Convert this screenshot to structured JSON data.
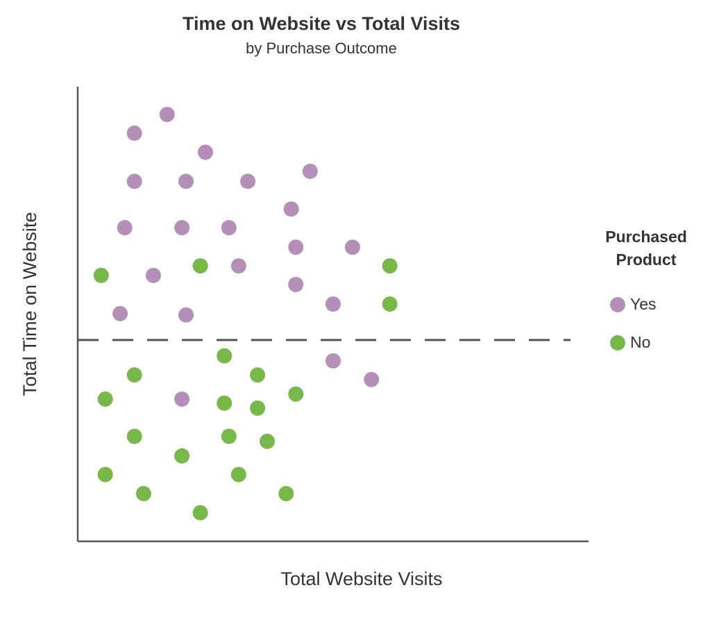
{
  "chart_data": {
    "type": "scatter",
    "title": "Time on Website vs Total Visits",
    "subtitle": "by Purchase Outcome",
    "x_label": "Total Website Visits",
    "y_label": "Total Time on Website",
    "legend_title": "Purchased Product",
    "legend": "right",
    "xlim": [
      0,
      100
    ],
    "ylim": [
      0,
      100
    ],
    "reference_line": 44.3,
    "series": [
      {
        "name": "Yes",
        "color": "#b48fb8",
        "x": [
          17.5,
          11.1,
          25,
          11.1,
          21.2,
          33.3,
          45.5,
          41.8,
          9.2,
          20.4,
          29.6,
          42.7,
          53.8,
          14.8,
          31.5,
          42.7,
          50,
          8.3,
          21.2,
          50,
          57.5,
          20.4
        ],
        "values": [
          93.9,
          89.8,
          85.6,
          79.2,
          79.2,
          79.2,
          81.4,
          73.1,
          69,
          69,
          69,
          64.7,
          64.7,
          58.5,
          60.6,
          56.5,
          52.2,
          50.1,
          49.8,
          39.7,
          35.6,
          31.3
        ]
      },
      {
        "name": "No",
        "color": "#78b84a",
        "x": [
          4.6,
          24,
          61.1,
          61.1,
          28.7,
          11.1,
          35.2,
          5.4,
          28.7,
          35.2,
          42.7,
          11.1,
          29.6,
          37.1,
          20.4,
          5.4,
          31.5,
          12.9,
          40.8,
          24
        ],
        "values": [
          58.5,
          60.6,
          60.6,
          52.2,
          40.8,
          36.6,
          36.6,
          31.3,
          30.4,
          29.3,
          32.4,
          23.1,
          23.1,
          22,
          18.8,
          14.7,
          14.7,
          10.5,
          10.5,
          6.3
        ]
      }
    ]
  }
}
